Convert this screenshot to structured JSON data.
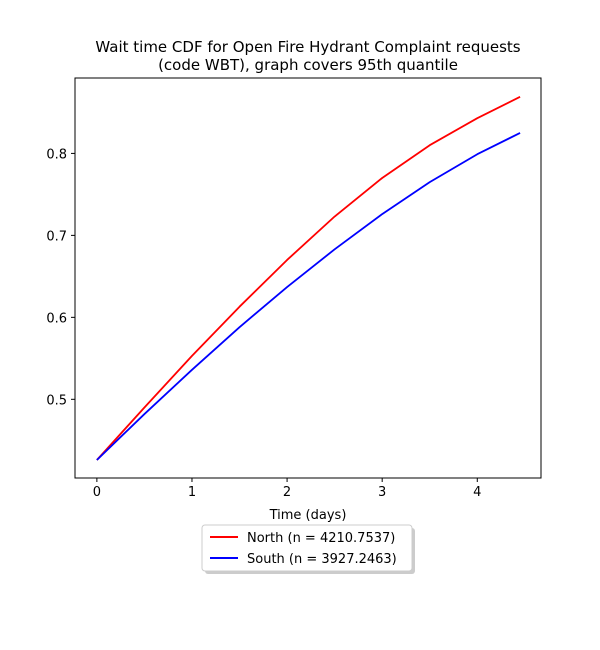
{
  "chart_data": {
    "type": "line",
    "title": "Wait time CDF for Open Fire Hydrant Complaint  requests\n(code WBT), graph covers 95th quantile",
    "xlabel": "Time (days)",
    "ylabel": "",
    "xlim": [
      -0.23,
      4.67
    ],
    "ylim": [
      0.404,
      0.892
    ],
    "xticks": [
      "0",
      "1",
      "2",
      "3",
      "4"
    ],
    "yticks": [
      "0.5",
      "0.6",
      "0.7",
      "0.8"
    ],
    "grid": false,
    "legend_placement": "below-center",
    "series": [
      {
        "name": "North (n = 4210.7537)",
        "color": "#ff0000",
        "x": [
          0,
          0.5,
          1.0,
          1.5,
          2.0,
          2.5,
          3.0,
          3.5,
          4.0,
          4.45
        ],
        "values": [
          0.426,
          0.49,
          0.553,
          0.613,
          0.67,
          0.723,
          0.77,
          0.81,
          0.843,
          0.869
        ]
      },
      {
        "name": "South (n = 3927.2463)",
        "color": "#0000ff",
        "x": [
          0,
          0.5,
          1.0,
          1.5,
          2.0,
          2.5,
          3.0,
          3.5,
          4.0,
          4.45
        ],
        "values": [
          0.426,
          0.482,
          0.536,
          0.588,
          0.637,
          0.683,
          0.726,
          0.765,
          0.799,
          0.825
        ]
      }
    ]
  }
}
